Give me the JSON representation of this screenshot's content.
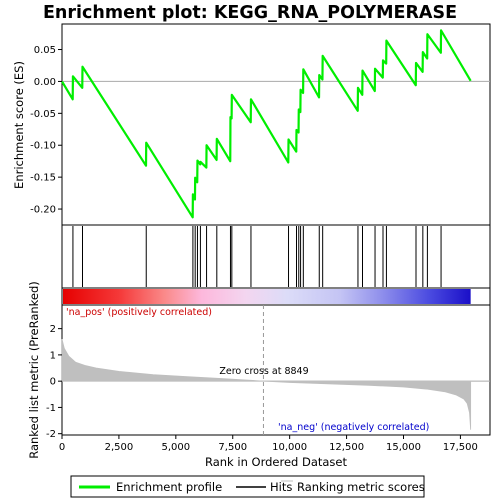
{
  "chart_data": {
    "type": "line",
    "title": "Enrichment plot: KEGG_RNA_POLYMERASE",
    "xlabel": "Rank in Ordered Dataset",
    "ylabel_top": "Enrichment score (ES)",
    "ylabel_bottom": "Ranked list metric (PreRanked)",
    "xlim": [
      0,
      18800
    ],
    "ylim_top": [
      -0.225,
      0.09
    ],
    "ylim_bottom": [
      -2.05,
      2.9
    ],
    "x_ticks": [
      0,
      2500,
      5000,
      7500,
      10000,
      12500,
      15000,
      17500
    ],
    "x_tick_labels": [
      "0",
      "2,500",
      "5,000",
      "7,500",
      "10,000",
      "12,500",
      "15,000",
      "17,500"
    ],
    "y_ticks_top": [
      0.05,
      0.0,
      -0.05,
      -0.1,
      -0.15,
      -0.2
    ],
    "y_tick_labels_top": [
      "0.05",
      "0.00",
      "-0.05",
      "-0.10",
      "-0.15",
      "-0.20"
    ],
    "y_ticks_bottom": [
      2,
      1,
      0,
      -1,
      -2
    ],
    "y_tick_labels_bottom": [
      "2",
      "1",
      "0",
      "-1",
      "-2"
    ],
    "hits": [
      480,
      900,
      3700,
      5750,
      5850,
      5950,
      6080,
      6350,
      6800,
      7400,
      7460,
      8300,
      9950,
      10300,
      10400,
      10480,
      10600,
      11300,
      11450,
      13000,
      13200,
      13750,
      14100,
      14250,
      15550,
      15850,
      16050,
      16650
    ],
    "es_curve": [
      [
        0,
        0.0
      ],
      [
        470,
        -0.028
      ],
      [
        480,
        0.008
      ],
      [
        890,
        -0.01
      ],
      [
        900,
        0.023
      ],
      [
        3690,
        -0.132
      ],
      [
        3700,
        -0.096
      ],
      [
        5740,
        -0.213
      ],
      [
        5750,
        -0.177
      ],
      [
        5840,
        -0.185
      ],
      [
        5850,
        -0.151
      ],
      [
        5940,
        -0.158
      ],
      [
        5950,
        -0.124
      ],
      [
        6070,
        -0.13
      ],
      [
        6080,
        -0.126
      ],
      [
        6340,
        -0.135
      ],
      [
        6350,
        -0.1
      ],
      [
        6790,
        -0.123
      ],
      [
        6800,
        -0.09
      ],
      [
        7390,
        -0.125
      ],
      [
        7400,
        -0.056
      ],
      [
        7450,
        -0.058
      ],
      [
        7460,
        -0.021
      ],
      [
        8290,
        -0.064
      ],
      [
        8300,
        -0.028
      ],
      [
        9940,
        -0.127
      ],
      [
        9950,
        -0.091
      ],
      [
        10290,
        -0.11
      ],
      [
        10300,
        -0.076
      ],
      [
        10390,
        -0.08
      ],
      [
        10400,
        -0.044
      ],
      [
        10470,
        -0.048
      ],
      [
        10480,
        -0.013
      ],
      [
        10590,
        -0.018
      ],
      [
        10600,
        0.019
      ],
      [
        11290,
        -0.025
      ],
      [
        11300,
        0.01
      ],
      [
        11440,
        0.003
      ],
      [
        11450,
        0.04
      ],
      [
        12990,
        -0.046
      ],
      [
        13000,
        -0.01
      ],
      [
        13190,
        -0.021
      ],
      [
        13200,
        0.017
      ],
      [
        13740,
        -0.015
      ],
      [
        13750,
        0.02
      ],
      [
        14090,
        0.006
      ],
      [
        14100,
        0.033
      ],
      [
        14240,
        0.028
      ],
      [
        14250,
        0.064
      ],
      [
        15540,
        -0.006
      ],
      [
        15550,
        0.029
      ],
      [
        15840,
        0.015
      ],
      [
        15850,
        0.046
      ],
      [
        16040,
        0.036
      ],
      [
        16050,
        0.074
      ],
      [
        16640,
        0.045
      ],
      [
        16650,
        0.08
      ],
      [
        17950,
        0.001
      ]
    ],
    "metric_curve": [
      [
        0,
        1.6
      ],
      [
        100,
        1.25
      ],
      [
        300,
        0.95
      ],
      [
        600,
        0.72
      ],
      [
        1000,
        0.6
      ],
      [
        1500,
        0.5
      ],
      [
        2500,
        0.37
      ],
      [
        4000,
        0.25
      ],
      [
        5500,
        0.17
      ],
      [
        7000,
        0.1
      ],
      [
        8000,
        0.05
      ],
      [
        8849,
        0.0
      ],
      [
        10000,
        -0.05
      ],
      [
        12000,
        -0.11
      ],
      [
        13500,
        -0.16
      ],
      [
        15000,
        -0.22
      ],
      [
        16000,
        -0.3
      ],
      [
        16800,
        -0.4
      ],
      [
        17300,
        -0.52
      ],
      [
        17650,
        -0.68
      ],
      [
        17800,
        -0.85
      ],
      [
        17900,
        -1.2
      ],
      [
        17950,
        -1.85
      ]
    ],
    "zero_cross_label": "Zero cross at 8849",
    "zero_cross_rank": 8849,
    "pos_label": "'na_pos' (positively correlated)",
    "neg_label": "'na_neg' (negatively correlated)",
    "legend": [
      "Enrichment profile",
      "Hits",
      "Ranking metric scores"
    ],
    "colors": {
      "es_line": "#00ee00",
      "hits": "#000000",
      "metric": "#bfbfbf",
      "pos_text": "#cc0000",
      "neg_text": "#0000cc"
    },
    "grid": false,
    "legend_position": "bottom"
  }
}
